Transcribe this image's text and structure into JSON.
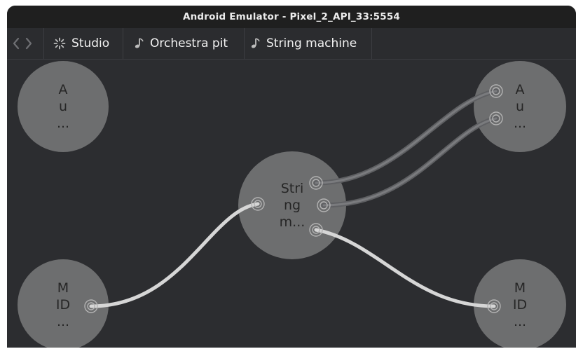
{
  "window": {
    "title": "Android Emulator - Pixel_2_API_33:5554"
  },
  "toolbar": {
    "back_icon": "chevron-left-icon",
    "forward_icon": "chevron-right-icon",
    "breadcrumbs": [
      {
        "label": "Studio",
        "icon": "spinner-icon"
      },
      {
        "label": "Orchestra pit",
        "icon": "music-note-icon"
      },
      {
        "label": "String machine",
        "icon": "music-note-icon"
      }
    ]
  },
  "canvas": {
    "nodes": [
      {
        "id": "audio-in",
        "lines": [
          "A",
          "u",
          "..."
        ]
      },
      {
        "id": "audio-out",
        "lines": [
          "A",
          "u",
          "..."
        ]
      },
      {
        "id": "string-machine",
        "lines": [
          "Stri",
          "ng",
          "m..."
        ]
      },
      {
        "id": "midi-in",
        "lines": [
          "M",
          "ID",
          "..."
        ]
      },
      {
        "id": "midi-out",
        "lines": [
          "M",
          "ID",
          "..."
        ]
      }
    ]
  },
  "colors": {
    "window_bg": "#2c2d30",
    "titlebar_bg": "#1f1f1f",
    "node_fill": "#8a8a8a",
    "cable_light": "#cfcfcf",
    "cable_dark": "#6a6a6a"
  }
}
